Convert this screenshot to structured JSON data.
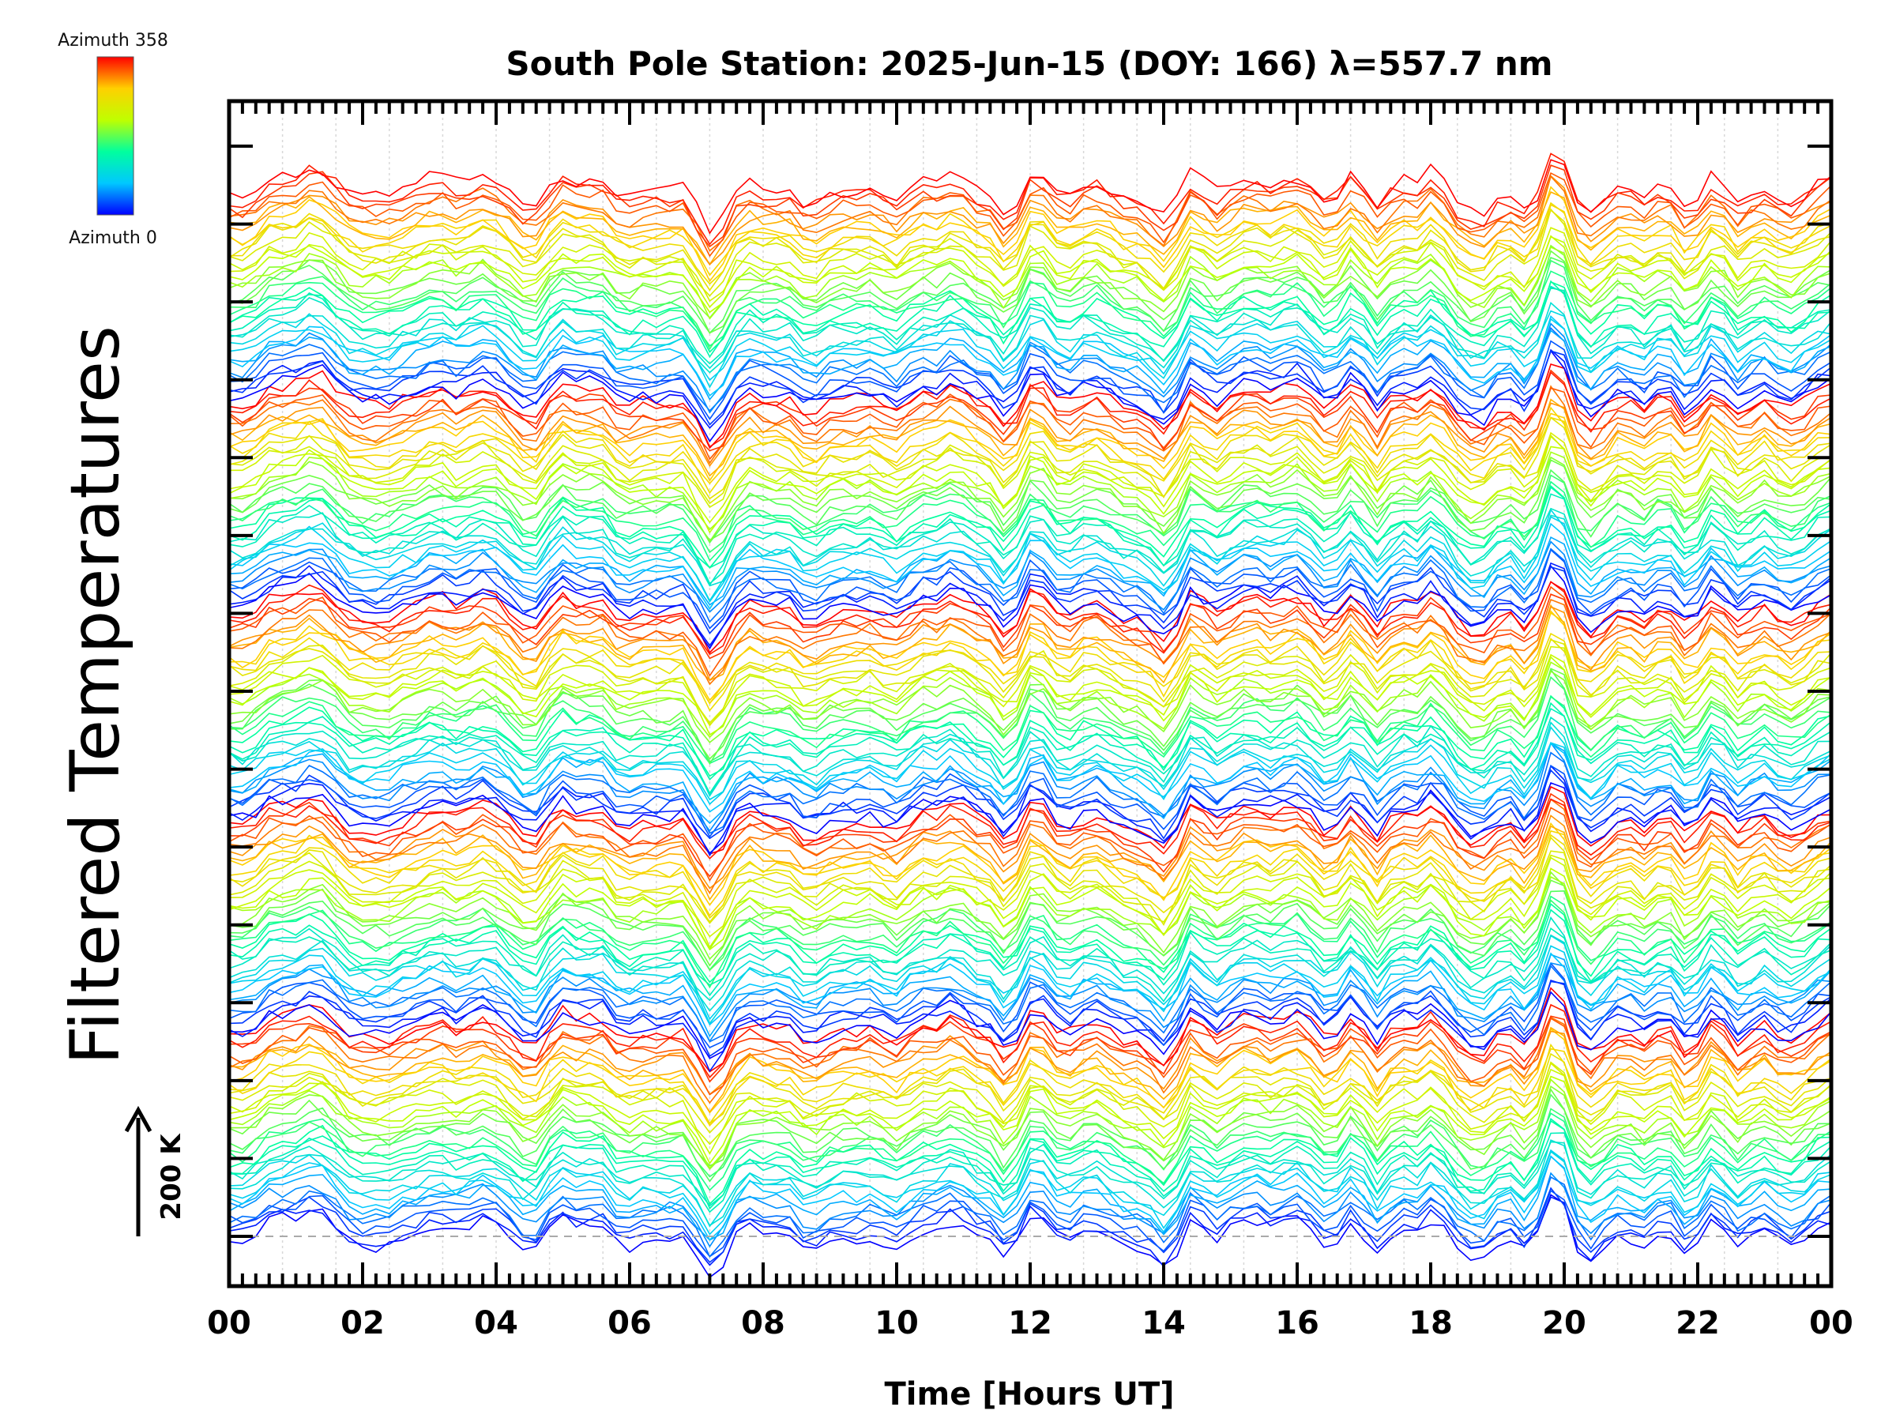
{
  "chart_data": {
    "type": "line",
    "title": "South Pole Station: 2025-Jun-15 (DOY: 166) λ=557.7 nm",
    "xlabel": "Time [Hours UT]",
    "ylabel": "Filtered Temperatures",
    "x_tick_labels": [
      "00",
      "02",
      "04",
      "06",
      "08",
      "10",
      "12",
      "14",
      "16",
      "18",
      "20",
      "22",
      "00"
    ],
    "xlim": [
      0,
      24
    ],
    "x_major_step_hours": 2,
    "x_minor_step_hours": 0.2,
    "x_grid": "vertical dotted lines every 0.8 hours",
    "y_tick_count": 15,
    "baseline": "dashed gray line at bottom trace",
    "scale_bar": {
      "label": "200 K",
      "direction": "up"
    },
    "colorbar": {
      "top_label": "Azimuth  358",
      "bottom_label": "Azimuth  0",
      "colormap": "jet",
      "colors": [
        "#0000ff",
        "#00c8ff",
        "#00ff9f",
        "#bfff00",
        "#ffd000",
        "#ff0000"
      ]
    },
    "series_description": {
      "stacked_traces": true,
      "groups": 5,
      "traces_per_group": 36,
      "azimuth_range": [
        0,
        358
      ],
      "sample_interval_hours": 0.2,
      "color_by": "azimuth"
    }
  }
}
